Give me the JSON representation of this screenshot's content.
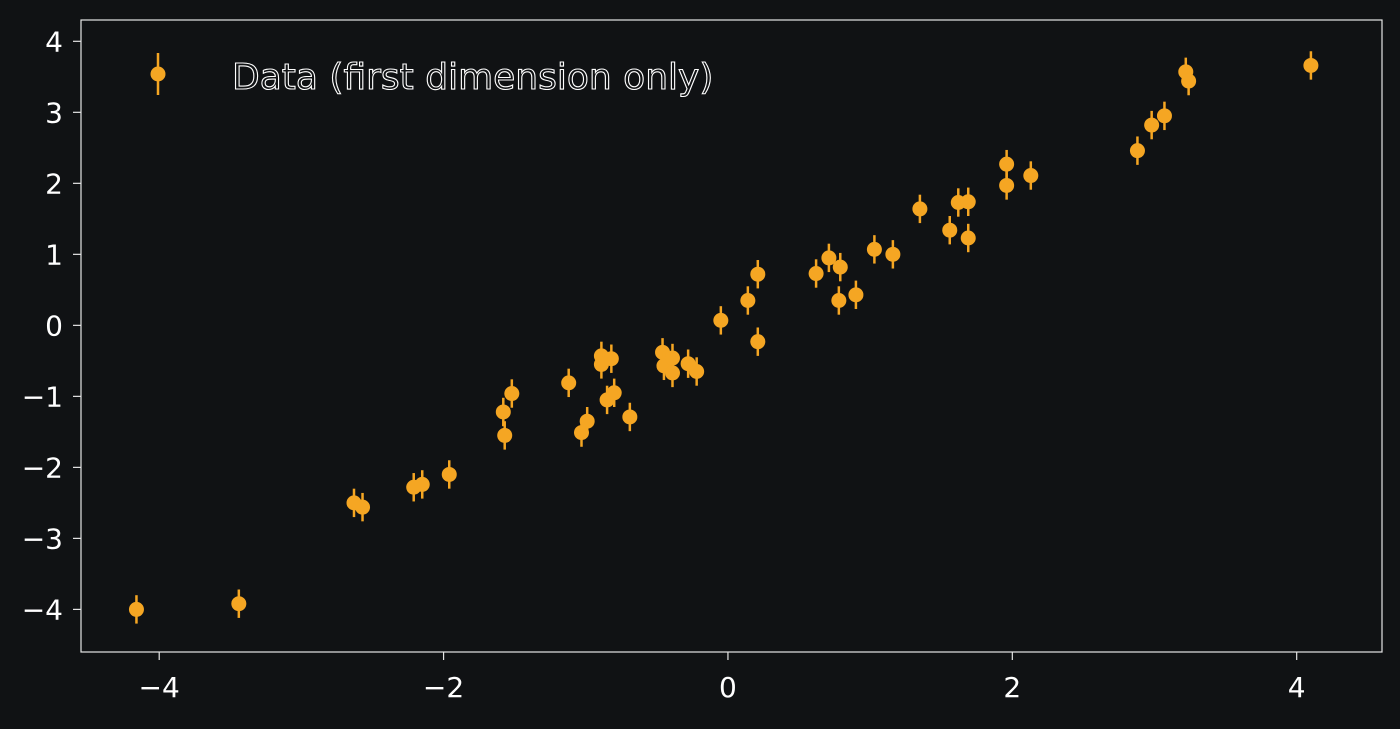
{
  "chart_data": {
    "type": "scatter",
    "title": "",
    "xlabel": "",
    "ylabel": "",
    "xlim": [
      -4.55,
      4.6
    ],
    "ylim": [
      -4.6,
      4.3
    ],
    "x_ticks": [
      -4,
      -2,
      0,
      2,
      4
    ],
    "y_ticks": [
      -4,
      -3,
      -2,
      -1,
      0,
      1,
      2,
      3,
      4
    ],
    "x_tick_labels": [
      "−4",
      "−2",
      "0",
      "2",
      "4"
    ],
    "y_tick_labels": [
      "−4",
      "−3",
      "−2",
      "−1",
      "0",
      "1",
      "2",
      "3",
      "4"
    ],
    "grid": false,
    "legend_position": "top-left",
    "error_bar_halfwidth": 0.2,
    "series": [
      {
        "name": "Data (first dimension only)",
        "color": "#f5a623",
        "points": [
          {
            "x": -4.16,
            "y": -4.0
          },
          {
            "x": -3.44,
            "y": -3.92
          },
          {
            "x": -2.63,
            "y": -2.5
          },
          {
            "x": -2.57,
            "y": -2.56
          },
          {
            "x": -2.21,
            "y": -2.28
          },
          {
            "x": -2.15,
            "y": -2.24
          },
          {
            "x": -1.96,
            "y": -2.1
          },
          {
            "x": -1.58,
            "y": -1.22
          },
          {
            "x": -1.57,
            "y": -1.55
          },
          {
            "x": -1.52,
            "y": -0.96
          },
          {
            "x": -1.12,
            "y": -0.81
          },
          {
            "x": -1.03,
            "y": -1.51
          },
          {
            "x": -0.99,
            "y": -1.35
          },
          {
            "x": -0.89,
            "y": -0.43
          },
          {
            "x": -0.89,
            "y": -0.55
          },
          {
            "x": -0.85,
            "y": -1.05
          },
          {
            "x": -0.82,
            "y": -0.47
          },
          {
            "x": -0.8,
            "y": -0.95
          },
          {
            "x": -0.69,
            "y": -1.29
          },
          {
            "x": -0.46,
            "y": -0.38
          },
          {
            "x": -0.45,
            "y": -0.57
          },
          {
            "x": -0.39,
            "y": -0.46
          },
          {
            "x": -0.39,
            "y": -0.67
          },
          {
            "x": -0.28,
            "y": -0.54
          },
          {
            "x": -0.22,
            "y": -0.65
          },
          {
            "x": -0.05,
            "y": 0.07
          },
          {
            "x": 0.14,
            "y": 0.35
          },
          {
            "x": 0.21,
            "y": -0.23
          },
          {
            "x": 0.21,
            "y": 0.72
          },
          {
            "x": 0.62,
            "y": 0.73
          },
          {
            "x": 0.71,
            "y": 0.95
          },
          {
            "x": 0.78,
            "y": 0.35
          },
          {
            "x": 0.79,
            "y": 0.82
          },
          {
            "x": 0.9,
            "y": 0.43
          },
          {
            "x": 1.03,
            "y": 1.07
          },
          {
            "x": 1.16,
            "y": 1.0
          },
          {
            "x": 1.35,
            "y": 1.64
          },
          {
            "x": 1.56,
            "y": 1.34
          },
          {
            "x": 1.62,
            "y": 1.73
          },
          {
            "x": 1.69,
            "y": 1.74
          },
          {
            "x": 1.69,
            "y": 1.23
          },
          {
            "x": 1.96,
            "y": 2.27
          },
          {
            "x": 1.96,
            "y": 1.97
          },
          {
            "x": 2.13,
            "y": 2.11
          },
          {
            "x": 2.88,
            "y": 2.46
          },
          {
            "x": 2.98,
            "y": 2.82
          },
          {
            "x": 3.07,
            "y": 2.95
          },
          {
            "x": 3.22,
            "y": 3.57
          },
          {
            "x": 3.24,
            "y": 3.44
          },
          {
            "x": 4.1,
            "y": 3.66
          }
        ]
      }
    ]
  }
}
